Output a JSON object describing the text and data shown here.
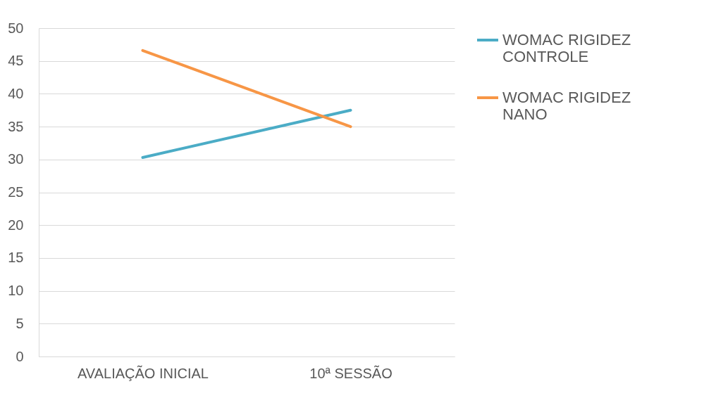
{
  "chart_data": {
    "type": "line",
    "categories": [
      "AVALIAÇÃO INICIAL",
      "10ª SESSÃO"
    ],
    "series": [
      {
        "name": "WOMAC RIGIDEZ CONTROLE",
        "color": "#4bacc6",
        "values": [
          30.3,
          37.5
        ]
      },
      {
        "name": "WOMAC RIGIDEZ NANO",
        "color": "#f79646",
        "values": [
          46.6,
          35.0
        ]
      }
    ],
    "ylim": [
      0,
      50
    ],
    "yticks": [
      0,
      5,
      10,
      15,
      20,
      25,
      30,
      35,
      40,
      45,
      50
    ],
    "grid": "y",
    "legend": "right",
    "marker": "none",
    "line_style": "solid"
  }
}
